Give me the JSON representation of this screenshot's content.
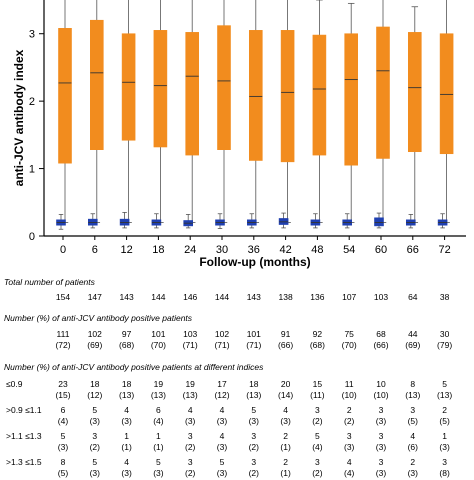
{
  "chart_data": {
    "type": "box",
    "ylabel": "anti-JCV antibody index",
    "xlabel": "Follow-up (months)",
    "ylim": [
      0,
      3.5
    ],
    "yticks": [
      "0",
      "1",
      "2",
      "3"
    ],
    "categories": [
      "0",
      "6",
      "12",
      "18",
      "24",
      "30",
      "36",
      "42",
      "48",
      "54",
      "60",
      "66",
      "72"
    ],
    "series": [
      {
        "color": "#f28c1e",
        "boxes": [
          {
            "whisker_low": 0.2,
            "q1": 1.08,
            "median": 2.27,
            "q3": 3.08,
            "whisker_high": 3.55
          },
          {
            "whisker_low": 0.2,
            "q1": 1.28,
            "median": 2.42,
            "q3": 3.2,
            "whisker_high": 3.55
          },
          {
            "whisker_low": 0.2,
            "q1": 1.42,
            "median": 2.28,
            "q3": 3.0,
            "whisker_high": 3.55
          },
          {
            "whisker_low": 0.2,
            "q1": 1.32,
            "median": 2.23,
            "q3": 3.05,
            "whisker_high": 3.55
          },
          {
            "whisker_low": 0.2,
            "q1": 1.2,
            "median": 2.37,
            "q3": 3.02,
            "whisker_high": 3.55
          },
          {
            "whisker_low": 0.2,
            "q1": 1.28,
            "median": 2.3,
            "q3": 3.12,
            "whisker_high": 3.55
          },
          {
            "whisker_low": 0.2,
            "q1": 1.12,
            "median": 2.07,
            "q3": 3.05,
            "whisker_high": 3.55
          },
          {
            "whisker_low": 0.2,
            "q1": 1.1,
            "median": 2.13,
            "q3": 3.05,
            "whisker_high": 3.55
          },
          {
            "whisker_low": 0.2,
            "q1": 1.2,
            "median": 2.18,
            "q3": 2.98,
            "whisker_high": 3.5
          },
          {
            "whisker_low": 0.2,
            "q1": 1.05,
            "median": 2.32,
            "q3": 3.0,
            "whisker_high": 3.45
          },
          {
            "whisker_low": 0.2,
            "q1": 1.15,
            "median": 2.45,
            "q3": 3.1,
            "whisker_high": 3.55
          },
          {
            "whisker_low": 0.2,
            "q1": 1.25,
            "median": 2.2,
            "q3": 3.02,
            "whisker_high": 3.4
          },
          {
            "whisker_low": 0.2,
            "q1": 1.22,
            "median": 2.1,
            "q3": 3.0,
            "whisker_high": 3.55
          }
        ]
      },
      {
        "color": "#1f3fb0",
        "boxes": [
          {
            "whisker_low": 0.1,
            "q1": 0.16,
            "median": 0.2,
            "q3": 0.24,
            "whisker_high": 0.32
          },
          {
            "whisker_low": 0.12,
            "q1": 0.16,
            "median": 0.2,
            "q3": 0.25,
            "whisker_high": 0.33
          },
          {
            "whisker_low": 0.12,
            "q1": 0.16,
            "median": 0.2,
            "q3": 0.25,
            "whisker_high": 0.35
          },
          {
            "whisker_low": 0.12,
            "q1": 0.16,
            "median": 0.2,
            "q3": 0.24,
            "whisker_high": 0.33
          },
          {
            "whisker_low": 0.12,
            "q1": 0.15,
            "median": 0.19,
            "q3": 0.23,
            "whisker_high": 0.32
          },
          {
            "whisker_low": 0.11,
            "q1": 0.16,
            "median": 0.2,
            "q3": 0.24,
            "whisker_high": 0.33
          },
          {
            "whisker_low": 0.12,
            "q1": 0.16,
            "median": 0.2,
            "q3": 0.24,
            "whisker_high": 0.33
          },
          {
            "whisker_low": 0.12,
            "q1": 0.17,
            "median": 0.21,
            "q3": 0.26,
            "whisker_high": 0.34
          },
          {
            "whisker_low": 0.12,
            "q1": 0.16,
            "median": 0.2,
            "q3": 0.24,
            "whisker_high": 0.33
          },
          {
            "whisker_low": 0.12,
            "q1": 0.16,
            "median": 0.2,
            "q3": 0.24,
            "whisker_high": 0.33
          },
          {
            "whisker_low": 0.12,
            "q1": 0.15,
            "median": 0.2,
            "q3": 0.27,
            "whisker_high": 0.34
          },
          {
            "whisker_low": 0.12,
            "q1": 0.16,
            "median": 0.2,
            "q3": 0.24,
            "whisker_high": 0.32
          },
          {
            "whisker_low": 0.12,
            "q1": 0.16,
            "median": 0.2,
            "q3": 0.24,
            "whisker_high": 0.33
          }
        ]
      }
    ]
  },
  "table": {
    "total_label": "Total number of patients",
    "total": [
      "154",
      "147",
      "143",
      "144",
      "146",
      "144",
      "143",
      "138",
      "136",
      "107",
      "103",
      "64",
      "38"
    ],
    "positive_label": "Number (%) of anti-JCV antibody positive patients",
    "positive_n": [
      "111",
      "102",
      "97",
      "101",
      "103",
      "102",
      "101",
      "91",
      "92",
      "75",
      "68",
      "44",
      "30"
    ],
    "positive_pct": [
      "(72)",
      "(69)",
      "(68)",
      "(70)",
      "(71)",
      "(71)",
      "(71)",
      "(66)",
      "(68)",
      "(70)",
      "(66)",
      "(69)",
      "(79)"
    ],
    "indices_label": "Number (%) of anti-JCV antibody positive patients at different indices",
    "index_rows": [
      {
        "label": "≤0.9",
        "n": [
          "23",
          "18",
          "18",
          "19",
          "19",
          "17",
          "18",
          "20",
          "15",
          "11",
          "10",
          "8",
          "5"
        ],
        "pct": [
          "(15)",
          "(12)",
          "(13)",
          "(13)",
          "(13)",
          "(12)",
          "(13)",
          "(14)",
          "(11)",
          "(10)",
          "(10)",
          "(13)",
          "(13)"
        ]
      },
      {
        "label": ">0.9 ≤1.1",
        "n": [
          "6",
          "5",
          "4",
          "6",
          "4",
          "4",
          "5",
          "4",
          "3",
          "2",
          "3",
          "3",
          "2"
        ],
        "pct": [
          "(4)",
          "(3)",
          "(3)",
          "(4)",
          "(3)",
          "(3)",
          "(3)",
          "(3)",
          "(2)",
          "(2)",
          "(3)",
          "(5)",
          "(5)"
        ]
      },
      {
        "label": ">1.1 ≤1.3",
        "n": [
          "5",
          "3",
          "1",
          "1",
          "3",
          "4",
          "3",
          "2",
          "5",
          "3",
          "3",
          "4",
          "1"
        ],
        "pct": [
          "(3)",
          "(2)",
          "(1)",
          "(1)",
          "(2)",
          "(3)",
          "(2)",
          "(1)",
          "(4)",
          "(3)",
          "(3)",
          "(6)",
          "(3)"
        ]
      },
      {
        "label": ">1.3 ≤1.5",
        "n": [
          "8",
          "5",
          "4",
          "5",
          "3",
          "5",
          "3",
          "2",
          "3",
          "4",
          "3",
          "2",
          "3"
        ],
        "pct": [
          "(5)",
          "(3)",
          "(3)",
          "(3)",
          "(2)",
          "(3)",
          "(2)",
          "(1)",
          "(2)",
          "(4)",
          "(3)",
          "(3)",
          "(8)"
        ]
      }
    ]
  }
}
